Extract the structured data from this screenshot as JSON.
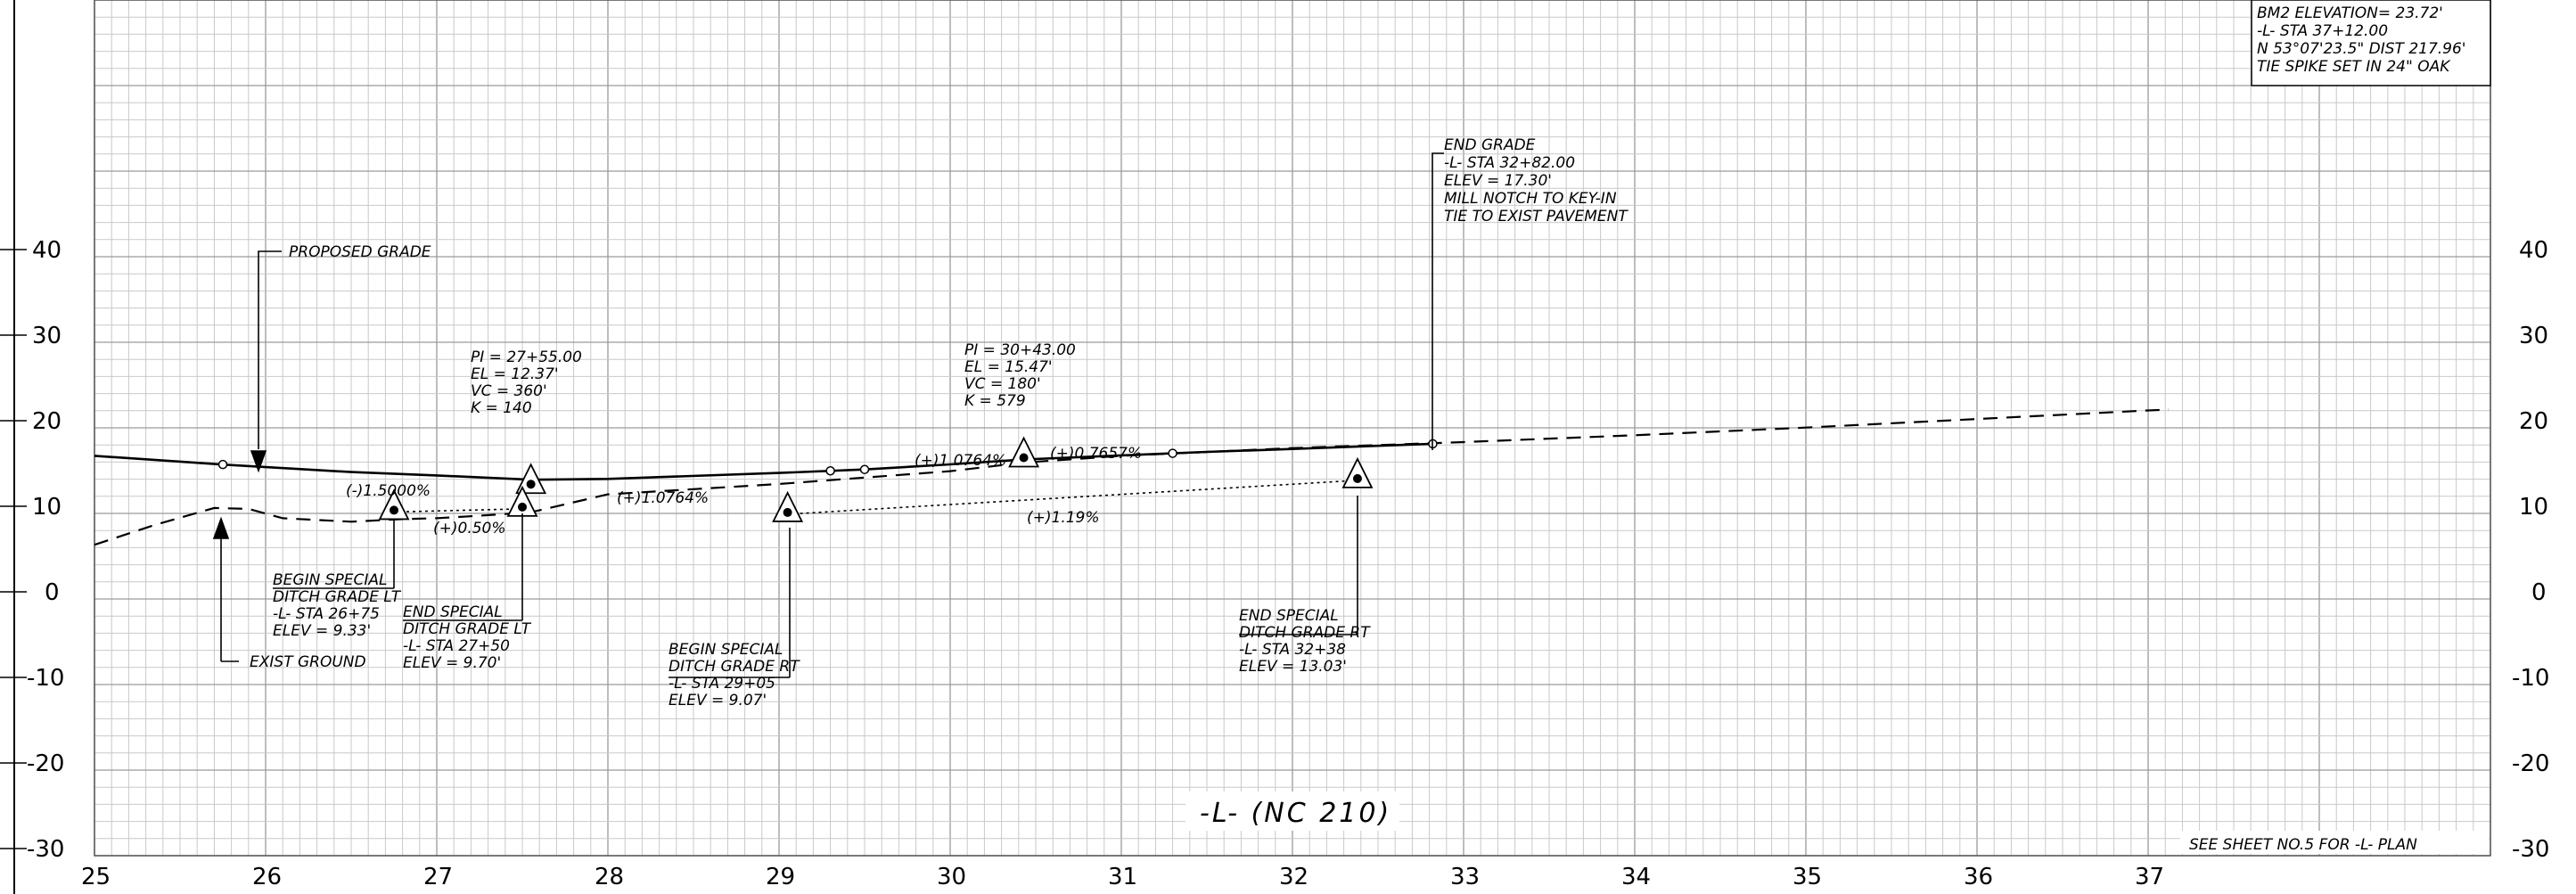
{
  "sheet": {
    "title": "-L- (NC 210)",
    "footer_note": "SEE SHEET NO.5 FOR -L- PLAN"
  },
  "axes": {
    "y_label_values": [
      "40",
      "30",
      "20",
      "10",
      "0",
      "-10",
      "-20",
      "-30"
    ],
    "x_label_values": [
      "25",
      "26",
      "27",
      "28",
      "29",
      "30",
      "31",
      "32",
      "33",
      "34",
      "35",
      "36",
      "37"
    ]
  },
  "benchmark": {
    "lines": [
      "BM2    ELEVATION= 23.72'",
      "-L-  STA  37+12.00",
      "N  53°07'23.5\" DIST  217.96'",
      "TIE  SPIKE  SET  IN  24\" OAK"
    ]
  },
  "labels": {
    "proposed_grade": "PROPOSED GRADE",
    "exist_ground": "EXIST GROUND"
  },
  "end_grade": {
    "lines": [
      "END GRADE",
      "-L-  STA 32+82.00",
      "ELEV  = 17.30'",
      "MILL NOTCH TO KEY-IN",
      "TIE TO EXIST PAVEMENT"
    ]
  },
  "vertical_curves": [
    {
      "lines": [
        "PI = 27+55.00",
        "EL = 12.37'",
        "VC = 360'",
        "K = 140"
      ]
    },
    {
      "lines": [
        "PI = 30+43.00",
        "EL = 15.47'",
        "VC = 180'",
        "K = 579"
      ]
    }
  ],
  "grades": {
    "g1": "(-)1.5000%",
    "g2": "(+)1.0764%",
    "g3": "(+)1.0764%",
    "g4": "(+)0.7657%",
    "ditch_lt": "(+)0.50%",
    "ditch_rt": "(+)1.19%"
  },
  "ditch_notes": {
    "begin_lt": [
      "BEGIN SPECIAL",
      "DITCH GRADE LT",
      "-L-  STA 26+75",
      "ELEV = 9.33'"
    ],
    "end_lt": [
      "END SPECIAL",
      "DITCH GRADE LT",
      "-L-  STA 27+50",
      "ELEV = 9.70'"
    ],
    "begin_rt": [
      "BEGIN SPECIAL",
      "DITCH GRADE RT",
      "-L-  STA 29+05",
      "ELEV = 9.07'"
    ],
    "end_rt": [
      "END SPECIAL",
      "DITCH GRADE RT",
      "-L-  STA 32+38",
      "ELEV = 13.03'"
    ]
  },
  "profile_data": {
    "proposed_grade": [
      [
        25.0,
        15.9
      ],
      [
        25.75,
        14.88
      ],
      [
        26.5,
        14.0
      ],
      [
        27.0,
        13.6
      ],
      [
        27.55,
        13.1
      ],
      [
        28.0,
        13.2
      ],
      [
        29.0,
        13.9
      ],
      [
        29.5,
        14.3
      ],
      [
        30.0,
        14.9
      ],
      [
        30.43,
        15.47
      ],
      [
        31.0,
        15.95
      ],
      [
        31.5,
        16.35
      ],
      [
        32.0,
        16.7
      ],
      [
        32.82,
        17.3
      ]
    ],
    "proposed_grade_vertex_points": [
      25.75,
      29.3,
      29.5,
      30.43,
      31.3,
      32.82
    ],
    "existing_ground": [
      [
        25.0,
        5.5
      ],
      [
        25.35,
        7.8
      ],
      [
        25.7,
        9.8
      ],
      [
        25.9,
        9.7
      ],
      [
        26.1,
        8.6
      ],
      [
        26.5,
        8.2
      ],
      [
        26.8,
        8.5
      ],
      [
        27.0,
        8.6
      ],
      [
        27.25,
        8.9
      ],
      [
        27.55,
        9.3
      ],
      [
        28.0,
        11.4
      ],
      [
        29.0,
        12.6
      ],
      [
        30.0,
        14.1
      ],
      [
        30.43,
        15.1
      ],
      [
        31.0,
        15.9
      ],
      [
        32.0,
        16.8
      ],
      [
        33.0,
        17.5
      ],
      [
        34.0,
        18.3
      ],
      [
        35.0,
        19.2
      ],
      [
        36.0,
        20.2
      ],
      [
        37.0,
        21.2
      ],
      [
        37.12,
        21.3
      ]
    ],
    "ditch_lt": [
      [
        26.75,
        9.33
      ],
      [
        27.5,
        9.7
      ]
    ],
    "ditch_rt": [
      [
        29.05,
        9.07
      ],
      [
        32.38,
        13.03
      ]
    ],
    "triangle_markers": [
      [
        26.75,
        9.33
      ],
      [
        27.55,
        12.37
      ],
      [
        27.5,
        9.7
      ],
      [
        29.05,
        9.07
      ],
      [
        30.43,
        15.47
      ],
      [
        32.38,
        13.03
      ]
    ]
  }
}
